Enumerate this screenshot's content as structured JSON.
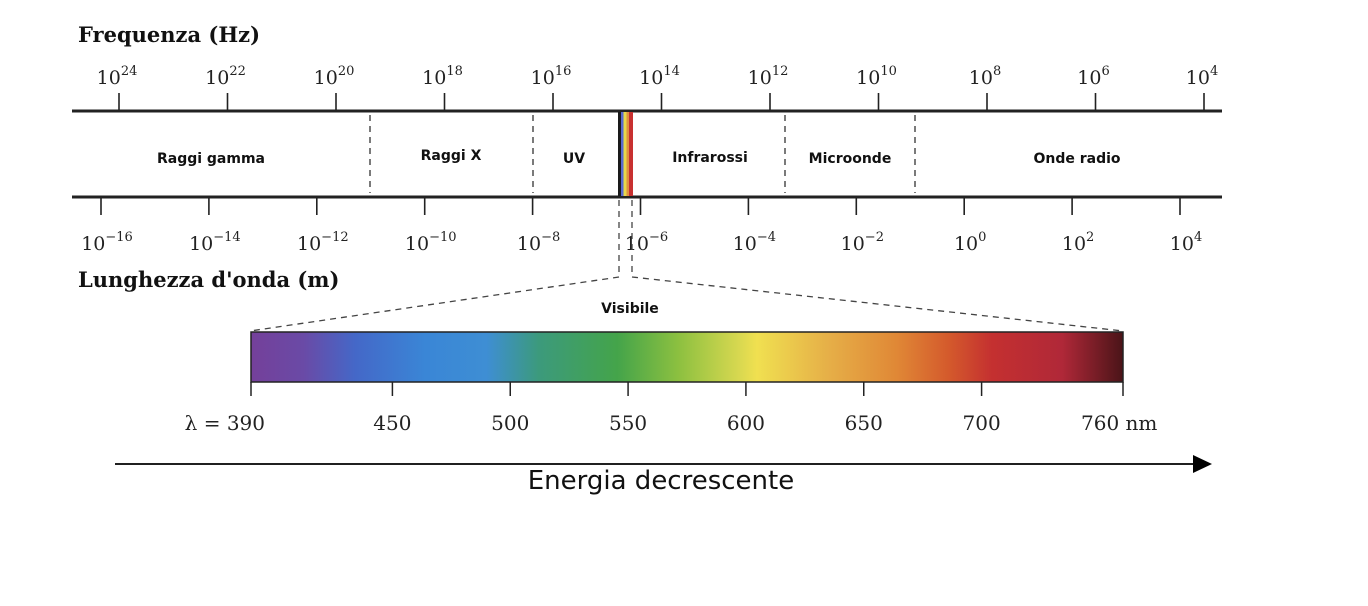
{
  "frequency_axis": {
    "title": "Frequenza (Hz)",
    "base": "10",
    "exponents": [
      "24",
      "22",
      "20",
      "18",
      "16",
      "14",
      "12",
      "10",
      "8",
      "6",
      "4"
    ]
  },
  "wavelength_axis": {
    "title": "Lunghezza d'onda (m)",
    "base": "10",
    "exponents": [
      "−16",
      "−14",
      "−12",
      "−10",
      "−8",
      "−6",
      "−4",
      "−2",
      "0",
      "2",
      "4"
    ]
  },
  "bands": [
    {
      "label": "Raggi gamma"
    },
    {
      "label": "Raggi X"
    },
    {
      "label": "UV"
    },
    {
      "label": "Infrarossi"
    },
    {
      "label": "Microonde"
    },
    {
      "label": "Onde radio"
    }
  ],
  "visible": {
    "label": "Visibile",
    "ticks": [
      "λ = 390",
      "450",
      "500",
      "550",
      "600",
      "650",
      "700",
      "760 nm"
    ],
    "colors": [
      "#7b3fa0",
      "#3f6fd0",
      "#3a8ed8",
      "#3a9a6a",
      "#4aa84a",
      "#b8d040",
      "#f0e050",
      "#e8a040",
      "#e07030",
      "#c03030",
      "#b82838",
      "#5a1a20"
    ]
  },
  "energy_label": "Energia decrescente",
  "colors": {
    "line": "#222222",
    "arrow": "#000000"
  }
}
